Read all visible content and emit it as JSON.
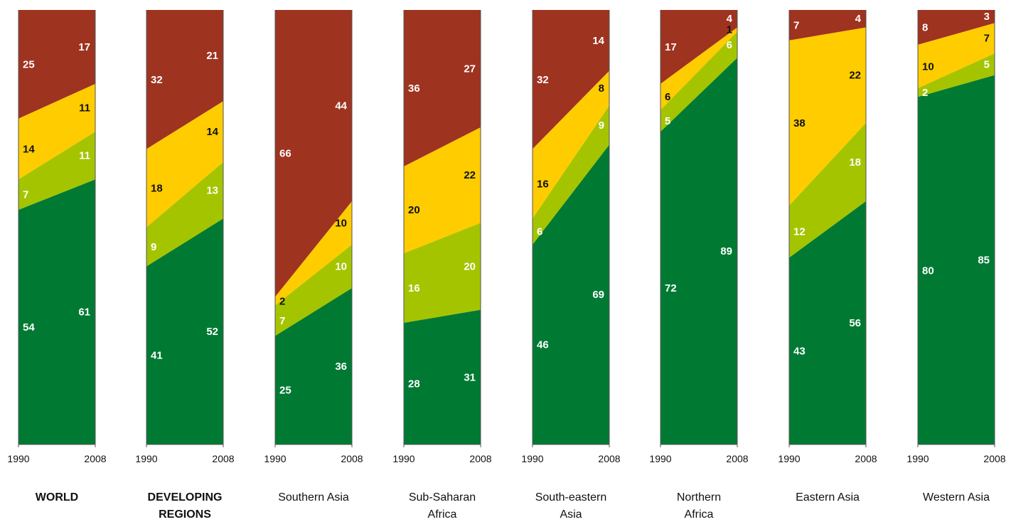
{
  "colors": {
    "segment_1": "#007a33",
    "segment_2": "#a5c400",
    "segment_3": "#ffcc00",
    "segment_4": "#9e3320",
    "axis": "#555555"
  },
  "chart_data": {
    "type": "area",
    "x": [
      "1990",
      "2008"
    ],
    "stack_order": [
      "segment_1",
      "segment_2",
      "segment_3",
      "segment_4"
    ],
    "ylim": [
      0,
      100
    ],
    "grid": false,
    "legend": "none",
    "panels": [
      {
        "label_lines": [
          "WORLD"
        ],
        "bold": true,
        "values": {
          "1990": [
            54,
            7,
            14,
            25
          ],
          "2008": [
            61,
            11,
            11,
            17
          ]
        }
      },
      {
        "label_lines": [
          "DEVELOPING",
          "REGIONS"
        ],
        "bold": true,
        "values": {
          "1990": [
            41,
            9,
            18,
            32
          ],
          "2008": [
            52,
            13,
            14,
            21
          ]
        }
      },
      {
        "label_lines": [
          "Southern Asia"
        ],
        "bold": false,
        "values": {
          "1990": [
            25,
            7,
            2,
            66
          ],
          "2008": [
            36,
            10,
            10,
            44
          ]
        }
      },
      {
        "label_lines": [
          "Sub-Saharan",
          "Africa"
        ],
        "bold": false,
        "values": {
          "1990": [
            28,
            16,
            20,
            36
          ],
          "2008": [
            31,
            20,
            22,
            27
          ]
        }
      },
      {
        "label_lines": [
          "South-eastern",
          "Asia"
        ],
        "bold": false,
        "values": {
          "1990": [
            46,
            6,
            16,
            32
          ],
          "2008": [
            69,
            9,
            8,
            14
          ]
        }
      },
      {
        "label_lines": [
          "Northern",
          "Africa"
        ],
        "bold": false,
        "values": {
          "1990": [
            72,
            5,
            6,
            17
          ],
          "2008": [
            89,
            6,
            1,
            4
          ]
        }
      },
      {
        "label_lines": [
          "Eastern Asia"
        ],
        "bold": false,
        "values": {
          "1990": [
            43,
            12,
            38,
            7
          ],
          "2008": [
            56,
            18,
            22,
            4
          ]
        }
      },
      {
        "label_lines": [
          "Western Asia"
        ],
        "bold": false,
        "values": {
          "1990": [
            80,
            2,
            10,
            8
          ],
          "2008": [
            85,
            5,
            7,
            3
          ]
        }
      }
    ]
  }
}
